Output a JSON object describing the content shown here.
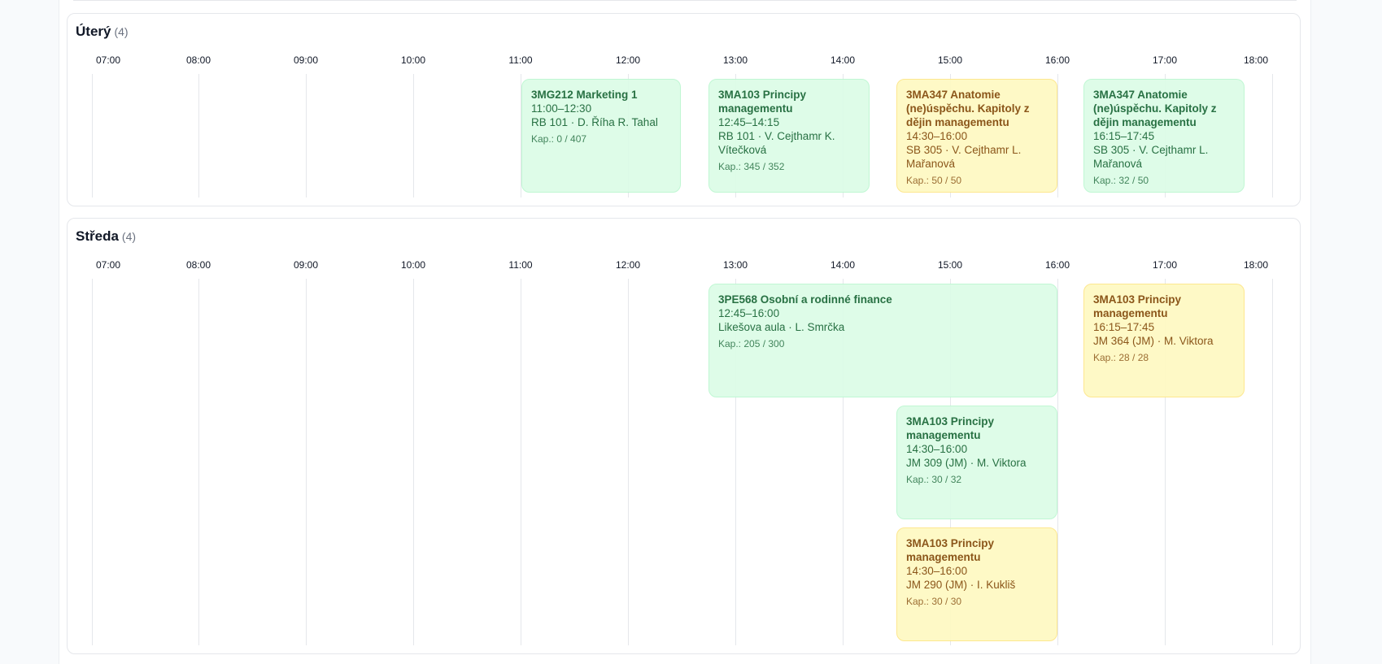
{
  "times": [
    "07:00",
    "08:00",
    "09:00",
    "10:00",
    "11:00",
    "12:00",
    "13:00",
    "14:00",
    "15:00",
    "16:00",
    "17:00",
    "18:00"
  ],
  "days": [
    {
      "name": "Úterý",
      "count": "(4)",
      "events": [
        {
          "title": "3MG212 Marketing 1",
          "time": "11:00–12:30",
          "place": "RB 101 · D. Říha R. Tahal",
          "cap": "Kap.: 0 / 407",
          "color": "green"
        },
        {
          "title": "3MA103 Principy managementu",
          "time": "12:45–14:15",
          "place": "RB 101 · V. Cejthamr K. Vítečková",
          "cap": "Kap.: 345 / 352",
          "color": "green"
        },
        {
          "title": "3MA347 Anatomie (ne)úspěchu. Kapitoly z dějin managementu",
          "time": "14:30–16:00",
          "place": "SB 305 · V. Cejthamr L. Mařanová",
          "cap": "Kap.: 50 / 50",
          "color": "yellow"
        },
        {
          "title": "3MA347 Anatomie (ne)úspěchu. Kapitoly z dějin managementu",
          "time": "16:15–17:45",
          "place": "SB 305 · V. Cejthamr L. Mařanová",
          "cap": "Kap.: 32 / 50",
          "color": "green"
        }
      ]
    },
    {
      "name": "Středa",
      "count": "(4)",
      "events": [
        {
          "title": "3PE568 Osobní a rodinné finance",
          "time": "12:45–16:00",
          "place": "Likešova aula · L. Smrčka",
          "cap": "Kap.: 205 / 300",
          "color": "green"
        },
        {
          "title": "3MA103 Principy managementu",
          "time": "16:15–17:45",
          "place": "JM 364 (JM) · M. Viktora",
          "cap": "Kap.: 28 / 28",
          "color": "yellow"
        },
        {
          "title": "3MA103 Principy managementu",
          "time": "14:30–16:00",
          "place": "JM 309 (JM) · M. Viktora",
          "cap": "Kap.: 30 / 32",
          "color": "green"
        },
        {
          "title": "3MA103 Principy managementu",
          "time": "14:30–16:00",
          "place": "JM 290 (JM) · I. Kukliš",
          "cap": "Kap.: 30 / 30",
          "color": "yellow"
        }
      ]
    }
  ]
}
